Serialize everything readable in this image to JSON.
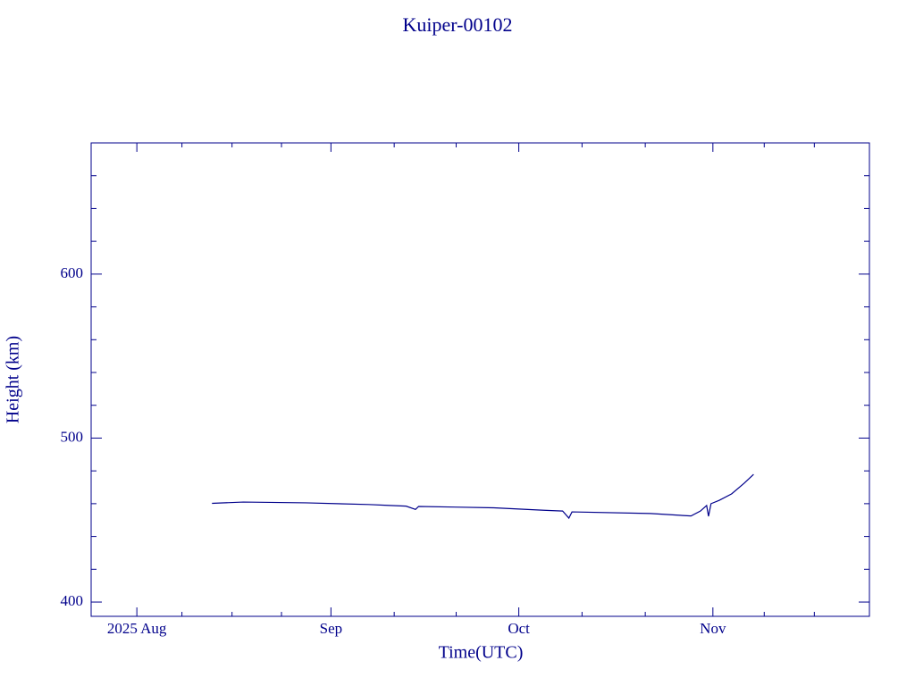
{
  "chart_data": {
    "type": "line",
    "title": "Kuiper-00102",
    "x_label": "Time(UTC)",
    "y_label": "Height (km)",
    "color": "#00008b",
    "xlim": [
      205.7,
      330
    ],
    "xticks": [
      {
        "value": 213,
        "label": "2025 Aug"
      },
      {
        "value": 244,
        "label": "Sep"
      },
      {
        "value": 274,
        "label": "Oct"
      },
      {
        "value": 305,
        "label": "Nov"
      }
    ],
    "xminorticks": [
      220.2,
      228.2,
      236.1,
      254.1,
      264,
      284.1,
      294.2,
      313.2,
      321.2
    ],
    "ylim": [
      391.3,
      680
    ],
    "yticks": [
      400,
      500,
      600
    ],
    "yminorticks": [
      420,
      440,
      460,
      480,
      520,
      540,
      560,
      580,
      620,
      640,
      660,
      680
    ],
    "x": [
      225,
      230,
      240,
      250,
      253,
      256,
      257.5,
      258,
      270,
      278,
      281,
      282,
      282.5,
      295,
      301.5,
      303,
      304,
      304.3,
      304.7,
      306,
      308,
      310,
      311.5
    ],
    "values": [
      460.2,
      461,
      460.5,
      459.5,
      459,
      458.5,
      456.5,
      458.3,
      457.5,
      456,
      455.5,
      451.2,
      455,
      454,
      452.5,
      455.5,
      458.9,
      452.3,
      460,
      462,
      466,
      472.5,
      477.9
    ]
  }
}
